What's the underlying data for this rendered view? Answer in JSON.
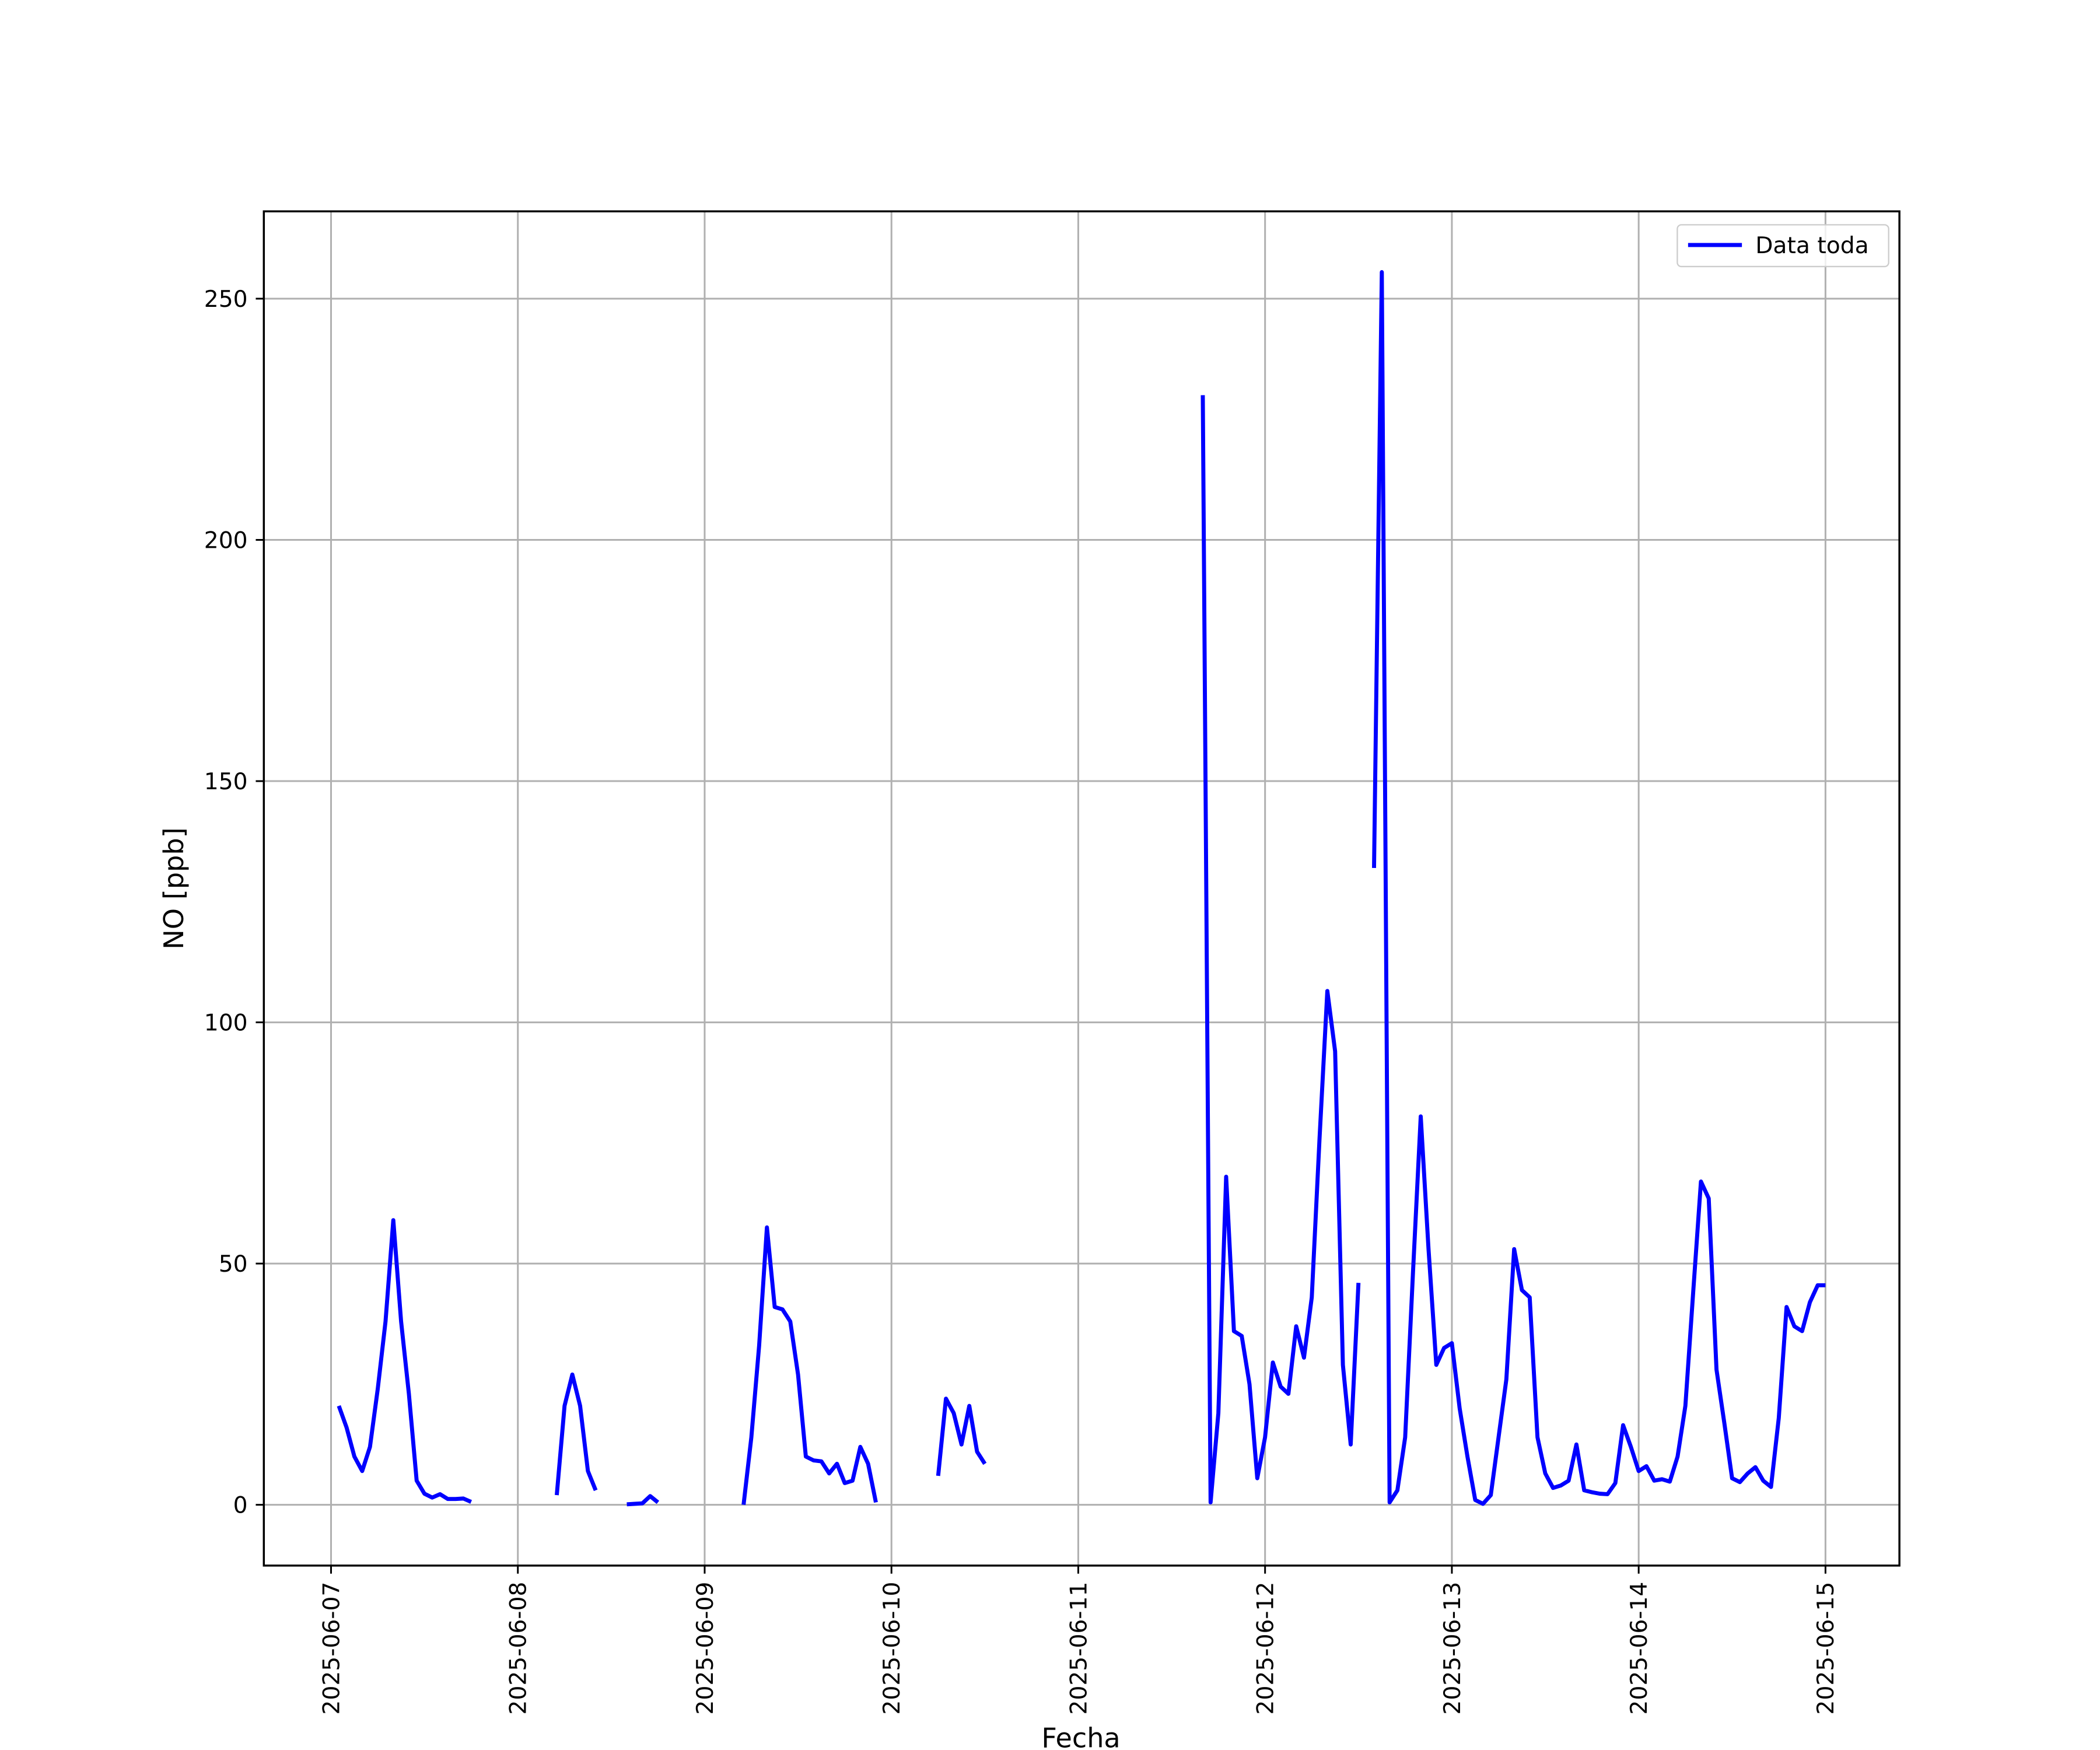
{
  "chart_data": {
    "type": "line",
    "xlabel": "Fecha",
    "ylabel": "NO [ppb]",
    "x": [
      "2025-06-07 01:00",
      "2025-06-07 02:00",
      "2025-06-07 03:00",
      "2025-06-07 04:00",
      "2025-06-07 05:00",
      "2025-06-07 06:00",
      "2025-06-07 07:00",
      "2025-06-07 08:00",
      "2025-06-07 09:00",
      "2025-06-07 10:00",
      "2025-06-07 11:00",
      "2025-06-07 12:00",
      "2025-06-07 13:00",
      "2025-06-07 14:00",
      "2025-06-07 15:00",
      "2025-06-07 16:00",
      "2025-06-07 17:00",
      "2025-06-07 18:00",
      "2025-06-07 19:00",
      "2025-06-08 05:00",
      "2025-06-08 06:00",
      "2025-06-08 07:00",
      "2025-06-08 08:00",
      "2025-06-08 09:00",
      "2025-06-08 10:00",
      "2025-06-08 11:00",
      "2025-06-08 14:00",
      "2025-06-08 15:00",
      "2025-06-08 16:00",
      "2025-06-08 17:00",
      "2025-06-08 18:00",
      "2025-06-08 19:00",
      "2025-06-09 05:00",
      "2025-06-09 06:00",
      "2025-06-09 07:00",
      "2025-06-09 08:00",
      "2025-06-09 09:00",
      "2025-06-09 10:00",
      "2025-06-09 11:00",
      "2025-06-09 12:00",
      "2025-06-09 13:00",
      "2025-06-09 14:00",
      "2025-06-09 15:00",
      "2025-06-09 16:00",
      "2025-06-09 17:00",
      "2025-06-09 18:00",
      "2025-06-09 19:00",
      "2025-06-09 20:00",
      "2025-06-09 21:00",
      "2025-06-09 22:00",
      "2025-06-09 23:00",
      "2025-06-10 06:00",
      "2025-06-10 07:00",
      "2025-06-10 08:00",
      "2025-06-10 09:00",
      "2025-06-10 10:00",
      "2025-06-10 11:00",
      "2025-06-10 12:00",
      "2025-06-10 13:00",
      "2025-06-11 16:00",
      "2025-06-11 17:00",
      "2025-06-11 18:00",
      "2025-06-11 19:00",
      "2025-06-11 20:00",
      "2025-06-11 21:00",
      "2025-06-11 22:00",
      "2025-06-11 23:00",
      "2025-06-12 00:00",
      "2025-06-12 01:00",
      "2025-06-12 02:00",
      "2025-06-12 03:00",
      "2025-06-12 04:00",
      "2025-06-12 05:00",
      "2025-06-12 06:00",
      "2025-06-12 07:00",
      "2025-06-12 08:00",
      "2025-06-12 09:00",
      "2025-06-12 10:00",
      "2025-06-12 11:00",
      "2025-06-12 12:00",
      "2025-06-12 13:00",
      "2025-06-12 14:00",
      "2025-06-12 15:00",
      "2025-06-12 16:00",
      "2025-06-12 17:00",
      "2025-06-12 18:00",
      "2025-06-12 19:00",
      "2025-06-12 20:00",
      "2025-06-12 21:00",
      "2025-06-12 22:00",
      "2025-06-12 23:00",
      "2025-06-13 00:00",
      "2025-06-13 01:00",
      "2025-06-13 02:00",
      "2025-06-13 03:00",
      "2025-06-13 04:00",
      "2025-06-13 05:00",
      "2025-06-13 06:00",
      "2025-06-13 07:00",
      "2025-06-13 08:00",
      "2025-06-13 09:00",
      "2025-06-13 10:00",
      "2025-06-13 11:00",
      "2025-06-13 12:00",
      "2025-06-13 13:00",
      "2025-06-13 14:00",
      "2025-06-13 15:00",
      "2025-06-13 16:00",
      "2025-06-13 17:00",
      "2025-06-13 18:00",
      "2025-06-13 19:00",
      "2025-06-13 20:00",
      "2025-06-13 21:00",
      "2025-06-13 22:00",
      "2025-06-13 23:00",
      "2025-06-14 00:00",
      "2025-06-14 01:00",
      "2025-06-14 02:00",
      "2025-06-14 03:00",
      "2025-06-14 04:00",
      "2025-06-14 05:00",
      "2025-06-14 06:00",
      "2025-06-14 07:00",
      "2025-06-14 08:00",
      "2025-06-14 09:00",
      "2025-06-14 10:00",
      "2025-06-14 11:00",
      "2025-06-14 12:00",
      "2025-06-14 13:00",
      "2025-06-14 14:00",
      "2025-06-14 15:00",
      "2025-06-14 16:00",
      "2025-06-14 17:00",
      "2025-06-14 18:00",
      "2025-06-14 19:00",
      "2025-06-14 20:00",
      "2025-06-14 21:00",
      "2025-06-14 22:00",
      "2025-06-14 23:00",
      "2025-06-15 00:00"
    ],
    "series": [
      {
        "name": "Data toda",
        "color": "#0000ff",
        "values": [
          20.5,
          16,
          10,
          7,
          12,
          24,
          38,
          59,
          38,
          23,
          5,
          2.3,
          1.5,
          2.2,
          1.2,
          1.2,
          1.3,
          0.6,
          null,
          2,
          20.5,
          27,
          20.5,
          7,
          3,
          null,
          0.1,
          0.2,
          0.3,
          1.8,
          0.5,
          null,
          0,
          14,
          33,
          57.5,
          41,
          40.5,
          38,
          27,
          10,
          9.2,
          9,
          6.5,
          8.5,
          4.5,
          5,
          12,
          8.5,
          0.5,
          null,
          6,
          22,
          19,
          12.5,
          20.5,
          11,
          8.5,
          null,
          230,
          0.5,
          19,
          68,
          36,
          35,
          25,
          5.5,
          14,
          29.5,
          24.5,
          23,
          37,
          30.5,
          43,
          76,
          106.5,
          94,
          29,
          12.5,
          46,
          null,
          132,
          255.5,
          0.5,
          3,
          14,
          48,
          80.5,
          53,
          29,
          32.5,
          33.5,
          20,
          10,
          1,
          0.2,
          2,
          14,
          26,
          53,
          44.5,
          43,
          14,
          6.5,
          3.5,
          4,
          5,
          12.5,
          3,
          2.6,
          2.3,
          2.2,
          4.5,
          16.5,
          12,
          7,
          8,
          5,
          5.3,
          4.8,
          10,
          20.5,
          44,
          67,
          63.5,
          28,
          17,
          5.5,
          4.7,
          6.5,
          7.8,
          5,
          3.7,
          18,
          41,
          37,
          36,
          42,
          45.5,
          45.5
        ]
      }
    ],
    "xlim": [
      "2025-06-06 15:22",
      "2025-06-15 09:30"
    ],
    "xticks": [
      "2025-06-07",
      "2025-06-08",
      "2025-06-09",
      "2025-06-10",
      "2025-06-11",
      "2025-06-12",
      "2025-06-13",
      "2025-06-14",
      "2025-06-15"
    ],
    "ylim": [
      -12.6,
      268.1
    ],
    "yticks": [
      0,
      50,
      100,
      150,
      200,
      250
    ],
    "grid": true,
    "legend": "upper right"
  }
}
